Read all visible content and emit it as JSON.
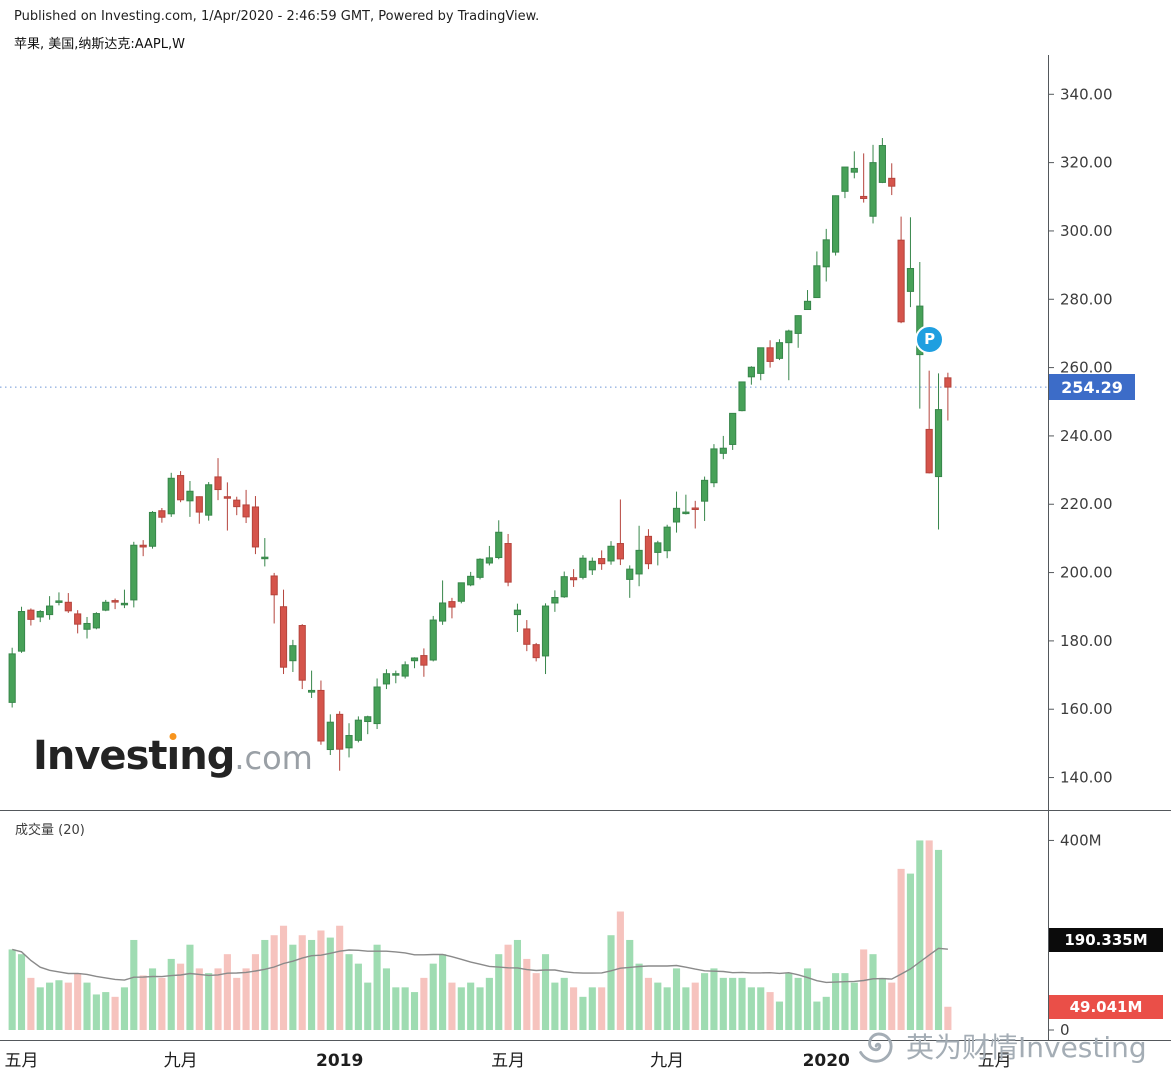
{
  "header": {
    "published": "Published on Investing.com, 1/Apr/2020 - 2:46:59 GMT, Powered by TradingView.",
    "symbol_line": "苹果, 美国,纳斯达克:AAPL,W"
  },
  "logo": {
    "text_before_i": "Invest",
    "i": "ı",
    "text_after_i": "ng",
    "suffix": ".com"
  },
  "watermark": {
    "text": "英为财情Investing"
  },
  "marker": {
    "label": "P",
    "index": 98,
    "price": 268.5
  },
  "price_label": {
    "label": "254.29",
    "value": 254.29
  },
  "volume_pane": {
    "title": "成交量 (20)",
    "ma_label": "190.335M",
    "ma_value": 190.335,
    "last_label": "49.041M",
    "last_value": 49.041
  },
  "chart_data": {
    "type": "candlestick",
    "symbol": "AAPL",
    "market": "纳斯达克",
    "interval": "W",
    "last_price": 254.29,
    "price_axis": {
      "min": 130.5,
      "max": 351.5,
      "ticks": [
        340,
        320,
        300,
        280,
        260,
        240,
        220,
        200,
        180,
        160,
        140
      ]
    },
    "volume_axis": {
      "max": 460,
      "ticks": [
        {
          "value": 400,
          "label": "400M"
        },
        {
          "value": 0,
          "label": "0"
        }
      ]
    },
    "x_axis": {
      "slots": 112,
      "labels": [
        {
          "text": "五月",
          "index": 1,
          "bold": false
        },
        {
          "text": "九月",
          "index": 18,
          "bold": false
        },
        {
          "text": "2019",
          "index": 35,
          "bold": true
        },
        {
          "text": "五月",
          "index": 53,
          "bold": false
        },
        {
          "text": "九月",
          "index": 70,
          "bold": false
        },
        {
          "text": "2020",
          "index": 87,
          "bold": true
        },
        {
          "text": "五月",
          "index": 105,
          "bold": false
        }
      ]
    },
    "colors": {
      "up": "#47a158",
      "up_border": "#37864a",
      "down": "#d5544b",
      "down_border": "#b5443c",
      "vol_up": "#9fdcb2",
      "vol_down": "#f6c3be",
      "vol_ma": "#8a8a8a",
      "last_price_line": "#6d97d8",
      "axis": "#54585c",
      "axis_text": "#3c3c3c",
      "price_tag_bg": "#3c6cc8",
      "vol_ma_tag_bg": "#0b0b0b",
      "vol_last_tag_bg": "#ea4f48",
      "marker_bg": "#1f9fe0"
    },
    "candles_format": [
      "open",
      "high",
      "low",
      "close",
      "volume_millions"
    ],
    "candles": [
      [
        162,
        178,
        160.5,
        176.2,
        170
      ],
      [
        177,
        190,
        176.5,
        188.6,
        160
      ],
      [
        189,
        189.5,
        184.5,
        186.3,
        110
      ],
      [
        187,
        189,
        185.5,
        188.6,
        90
      ],
      [
        187.7,
        193.1,
        186.2,
        190.2,
        100
      ],
      [
        191.6,
        194.2,
        190.4,
        191.7,
        105
      ],
      [
        191.3,
        194,
        188.2,
        188.8,
        100
      ],
      [
        187.9,
        189,
        182.2,
        184.9,
        120
      ],
      [
        183.4,
        187,
        180.7,
        185.1,
        100
      ],
      [
        183.8,
        188.4,
        183.4,
        188,
        75
      ],
      [
        189,
        192,
        188.7,
        191.3,
        80
      ],
      [
        191.8,
        192.4,
        189.3,
        191.4,
        70
      ],
      [
        191,
        195,
        189.6,
        191,
        90
      ],
      [
        192,
        209,
        189.8,
        208,
        190
      ],
      [
        208,
        209.5,
        204.8,
        207.5,
        115
      ],
      [
        207.7,
        218,
        207,
        217.6,
        130
      ],
      [
        218.1,
        218.9,
        214.6,
        216.2,
        110
      ],
      [
        217.2,
        229.2,
        216.3,
        227.6,
        150
      ],
      [
        228.4,
        229.7,
        220.6,
        221.3,
        140
      ],
      [
        221,
        226.8,
        216.3,
        223.8,
        180
      ],
      [
        222.2,
        222.3,
        214.3,
        217.7,
        130
      ],
      [
        216.8,
        226.5,
        215.2,
        225.7,
        120
      ],
      [
        228,
        233.5,
        221.2,
        224.3,
        130
      ],
      [
        222.2,
        226.4,
        212.3,
        222.1,
        160
      ],
      [
        221.2,
        222.2,
        216.8,
        219.3,
        110
      ],
      [
        219.8,
        224.2,
        214.5,
        216.3,
        130
      ],
      [
        219.2,
        222.4,
        205.4,
        207.5,
        160
      ],
      [
        204.3,
        210.1,
        201.8,
        204.5,
        190
      ],
      [
        199,
        199.9,
        185.1,
        193.5,
        200
      ],
      [
        190,
        195,
        170.3,
        172.3,
        220
      ],
      [
        174.2,
        180.3,
        170.9,
        178.6,
        180
      ],
      [
        184.5,
        184.9,
        165.9,
        168.5,
        200
      ],
      [
        165,
        171.3,
        163.3,
        165.5,
        190
      ],
      [
        165.5,
        168.4,
        149.6,
        150.7,
        210
      ],
      [
        148.2,
        158.5,
        146.6,
        156.2,
        195
      ],
      [
        158.5,
        159.4,
        142,
        148.3,
        220
      ],
      [
        148.7,
        155.9,
        145.9,
        152.3,
        160
      ],
      [
        150.9,
        157.9,
        150.3,
        156.8,
        140
      ],
      [
        156.4,
        158.1,
        152.7,
        157.8,
        100
      ],
      [
        155.8,
        169,
        154.2,
        166.5,
        180
      ],
      [
        167.4,
        171.7,
        165.9,
        170.4,
        130
      ],
      [
        170.1,
        171.3,
        167.6,
        170.4,
        90
      ],
      [
        169.7,
        174,
        169,
        173,
        90
      ],
      [
        174.2,
        175.2,
        172,
        175,
        80
      ],
      [
        175.7,
        177.8,
        169.5,
        172.9,
        110
      ],
      [
        174.4,
        187.3,
        174,
        186.1,
        140
      ],
      [
        185.8,
        197.7,
        184.7,
        191.1,
        160
      ],
      [
        191.5,
        192.6,
        186.6,
        189.9,
        100
      ],
      [
        191.6,
        197.1,
        191,
        197,
        90
      ],
      [
        196.4,
        200.2,
        196,
        198.9,
        100
      ],
      [
        198.6,
        204.2,
        198,
        203.9,
        90
      ],
      [
        202.8,
        207.8,
        202.1,
        204.3,
        110
      ],
      [
        204.4,
        215.3,
        203.9,
        211.8,
        160
      ],
      [
        208.5,
        211.3,
        196,
        197.2,
        180
      ],
      [
        187.7,
        190.9,
        182.6,
        189,
        190
      ],
      [
        183.5,
        186.1,
        177,
        179,
        150
      ],
      [
        178.9,
        179.4,
        174,
        175.1,
        120
      ],
      [
        175.6,
        191,
        170.3,
        190.2,
        160
      ],
      [
        191.1,
        194.8,
        188.5,
        192.7,
        100
      ],
      [
        192.9,
        200.3,
        192.6,
        198.8,
        110
      ],
      [
        198.5,
        201,
        195.8,
        197.9,
        90
      ],
      [
        198.6,
        205.1,
        198,
        204.2,
        70
      ],
      [
        200.8,
        204.4,
        199.3,
        203.3,
        90
      ],
      [
        204.1,
        206.5,
        200.8,
        202.6,
        90
      ],
      [
        203.4,
        209.2,
        202.3,
        207.7,
        200
      ],
      [
        208.5,
        221.4,
        202.2,
        204,
        250
      ],
      [
        198,
        202.1,
        192.6,
        201,
        190
      ],
      [
        199.6,
        213.7,
        196,
        206.5,
        140
      ],
      [
        210.6,
        212.7,
        201,
        202.6,
        110
      ],
      [
        205.9,
        209.3,
        202.1,
        208.7,
        100
      ],
      [
        206.4,
        214,
        204.2,
        213.3,
        90
      ],
      [
        214.8,
        223.7,
        211.7,
        218.8,
        130
      ],
      [
        217.7,
        222.8,
        217,
        217.7,
        90
      ],
      [
        218.9,
        221,
        212.9,
        218.8,
        100
      ],
      [
        220.9,
        228.1,
        215.1,
        227,
        120
      ],
      [
        226.3,
        237.6,
        225,
        236.2,
        130
      ],
      [
        234.9,
        240,
        233.2,
        236.4,
        110
      ],
      [
        237.5,
        246.7,
        235.9,
        246.6,
        110
      ],
      [
        247.4,
        255.9,
        247.2,
        255.8,
        110
      ],
      [
        257.3,
        260.4,
        255,
        260.1,
        90
      ],
      [
        258.3,
        265.8,
        256.3,
        265.8,
        90
      ],
      [
        265.8,
        268,
        260,
        261.8,
        80
      ],
      [
        262.7,
        268.3,
        262.2,
        267.3,
        60
      ],
      [
        267.3,
        271.1,
        256.3,
        270.7,
        120
      ],
      [
        270,
        275.3,
        265.8,
        275.2,
        110
      ],
      [
        277,
        282.7,
        276.9,
        279.4,
        130
      ],
      [
        280.5,
        294,
        280.4,
        289.8,
        60
      ],
      [
        289.5,
        300.6,
        285.2,
        297.4,
        70
      ],
      [
        293.8,
        310.4,
        292.8,
        310.3,
        120
      ],
      [
        311.6,
        318.7,
        309.6,
        318.7,
        120
      ],
      [
        317.2,
        323.3,
        315.4,
        318.3,
        100
      ],
      [
        310.1,
        322.7,
        308.3,
        309.5,
        170
      ],
      [
        304.3,
        325.2,
        302.2,
        320,
        160
      ],
      [
        314.2,
        327.2,
        314,
        325,
        110
      ],
      [
        315.4,
        319.8,
        310.5,
        313.1,
        100
      ],
      [
        297.3,
        304.2,
        273,
        273.4,
        340
      ],
      [
        282.3,
        304,
        277.7,
        289,
        330
      ],
      [
        263.8,
        290.9,
        248,
        278,
        400
      ],
      [
        241.9,
        259.1,
        229,
        229.2,
        400
      ],
      [
        228.1,
        258.3,
        212.6,
        247.7,
        380
      ],
      [
        257,
        258.5,
        244.5,
        254.29,
        49.041
      ]
    ]
  }
}
